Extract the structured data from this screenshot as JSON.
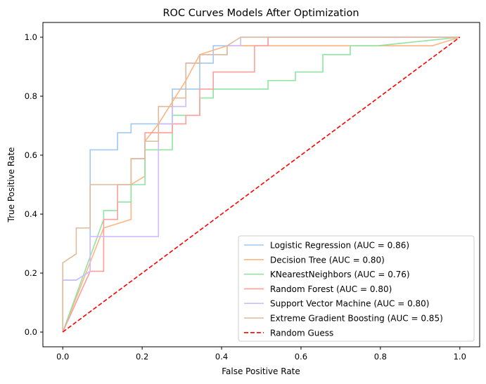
{
  "chart_data": {
    "type": "line",
    "title": "ROC Curves Models After Optimization",
    "xlabel": "False Positive Rate",
    "ylabel": "True Positive Rate",
    "xlim": [
      -0.05,
      1.05
    ],
    "ylim": [
      -0.05,
      1.05
    ],
    "xticks": [
      "0.0",
      "0.2",
      "0.4",
      "0.6",
      "0.8",
      "1.0"
    ],
    "yticks": [
      "0.0",
      "0.2",
      "0.4",
      "0.6",
      "0.8",
      "1.0"
    ],
    "grid": false,
    "legend_position": "lower-right",
    "series": [
      {
        "name": "Logistic Regression (AUC = 0.86)",
        "color": "#a1c9f4",
        "dash": "solid",
        "points": [
          [
            0,
            0
          ],
          [
            0,
            0.176
          ],
          [
            0.034,
            0.176
          ],
          [
            0.069,
            0.206
          ],
          [
            0.069,
            0.618
          ],
          [
            0.138,
            0.618
          ],
          [
            0.138,
            0.676
          ],
          [
            0.172,
            0.676
          ],
          [
            0.172,
            0.706
          ],
          [
            0.276,
            0.706
          ],
          [
            0.276,
            0.824
          ],
          [
            0.345,
            0.824
          ],
          [
            0.345,
            0.912
          ],
          [
            0.379,
            0.912
          ],
          [
            0.379,
            0.971
          ],
          [
            0.517,
            0.971
          ],
          [
            0.517,
            1.0
          ],
          [
            1.0,
            1.0
          ]
        ]
      },
      {
        "name": "Decision Tree (AUC = 0.80)",
        "color": "#ffb482",
        "dash": "solid",
        "points": [
          [
            0,
            0
          ],
          [
            0.103,
            0.353
          ],
          [
            0.172,
            0.382
          ],
          [
            0.172,
            0.5
          ],
          [
            0.207,
            0.529
          ],
          [
            0.207,
            0.647
          ],
          [
            0.241,
            0.706
          ],
          [
            0.31,
            0.853
          ],
          [
            0.345,
            0.941
          ],
          [
            0.414,
            0.971
          ],
          [
            0.931,
            0.971
          ],
          [
            1.0,
            1.0
          ]
        ]
      },
      {
        "name": "KNearestNeighbors (AUC = 0.76)",
        "color": "#8de5a1",
        "dash": "solid",
        "points": [
          [
            0,
            0
          ],
          [
            0.103,
            0.382
          ],
          [
            0.103,
            0.412
          ],
          [
            0.138,
            0.412
          ],
          [
            0.138,
            0.441
          ],
          [
            0.172,
            0.441
          ],
          [
            0.172,
            0.5
          ],
          [
            0.207,
            0.5
          ],
          [
            0.207,
            0.529
          ],
          [
            0.207,
            0.618
          ],
          [
            0.276,
            0.618
          ],
          [
            0.276,
            0.735
          ],
          [
            0.345,
            0.735
          ],
          [
            0.345,
            0.794
          ],
          [
            0.379,
            0.794
          ],
          [
            0.379,
            0.824
          ],
          [
            0.517,
            0.824
          ],
          [
            0.517,
            0.853
          ],
          [
            0.586,
            0.853
          ],
          [
            0.586,
            0.882
          ],
          [
            0.655,
            0.882
          ],
          [
            0.655,
            0.941
          ],
          [
            0.724,
            0.941
          ],
          [
            0.724,
            0.971
          ],
          [
            0.793,
            0.971
          ],
          [
            1.0,
            1.0
          ]
        ]
      },
      {
        "name": "Random Forest (AUC = 0.80)",
        "color": "#ff9f9b",
        "dash": "solid",
        "points": [
          [
            0,
            0
          ],
          [
            0.069,
            0.206
          ],
          [
            0.103,
            0.206
          ],
          [
            0.103,
            0.382
          ],
          [
            0.138,
            0.382
          ],
          [
            0.138,
            0.5
          ],
          [
            0.172,
            0.5
          ],
          [
            0.172,
            0.588
          ],
          [
            0.207,
            0.588
          ],
          [
            0.207,
            0.676
          ],
          [
            0.276,
            0.676
          ],
          [
            0.276,
            0.706
          ],
          [
            0.31,
            0.706
          ],
          [
            0.31,
            0.735
          ],
          [
            0.345,
            0.735
          ],
          [
            0.345,
            0.824
          ],
          [
            0.379,
            0.824
          ],
          [
            0.379,
            0.882
          ],
          [
            0.483,
            0.882
          ],
          [
            0.483,
            0.971
          ],
          [
            0.517,
            0.971
          ],
          [
            0.517,
            1.0
          ],
          [
            1.0,
            1.0
          ]
        ]
      },
      {
        "name": "Support Vector Machine (AUC = 0.80)",
        "color": "#d0bbff",
        "dash": "solid",
        "points": [
          [
            0,
            0
          ],
          [
            0,
            0.176
          ],
          [
            0.034,
            0.176
          ],
          [
            0.069,
            0.206
          ],
          [
            0.069,
            0.324
          ],
          [
            0.241,
            0.324
          ],
          [
            0.241,
            0.706
          ],
          [
            0.276,
            0.706
          ],
          [
            0.276,
            0.765
          ],
          [
            0.31,
            0.765
          ],
          [
            0.31,
            0.912
          ],
          [
            0.345,
            0.912
          ],
          [
            0.345,
            0.941
          ],
          [
            0.414,
            0.941
          ],
          [
            0.414,
            0.971
          ],
          [
            0.448,
            0.971
          ],
          [
            0.448,
            1.0
          ],
          [
            1.0,
            1.0
          ]
        ]
      },
      {
        "name": "Extreme Gradient Boosting (AUC = 0.85)",
        "color": "#debb9b",
        "dash": "solid",
        "points": [
          [
            0,
            0
          ],
          [
            0,
            0.235
          ],
          [
            0.034,
            0.265
          ],
          [
            0.034,
            0.353
          ],
          [
            0.069,
            0.353
          ],
          [
            0.069,
            0.5
          ],
          [
            0.172,
            0.5
          ],
          [
            0.172,
            0.588
          ],
          [
            0.207,
            0.588
          ],
          [
            0.207,
            0.647
          ],
          [
            0.241,
            0.647
          ],
          [
            0.241,
            0.765
          ],
          [
            0.276,
            0.765
          ],
          [
            0.276,
            0.794
          ],
          [
            0.31,
            0.794
          ],
          [
            0.31,
            0.912
          ],
          [
            0.345,
            0.912
          ],
          [
            0.345,
            0.941
          ],
          [
            0.414,
            0.941
          ],
          [
            0.414,
            0.971
          ],
          [
            0.448,
            1.0
          ],
          [
            1.0,
            1.0
          ]
        ]
      },
      {
        "name": "Random Guess",
        "color": "#ff0000",
        "dash": "dashed",
        "points": [
          [
            0,
            0
          ],
          [
            1,
            1
          ]
        ]
      }
    ]
  }
}
